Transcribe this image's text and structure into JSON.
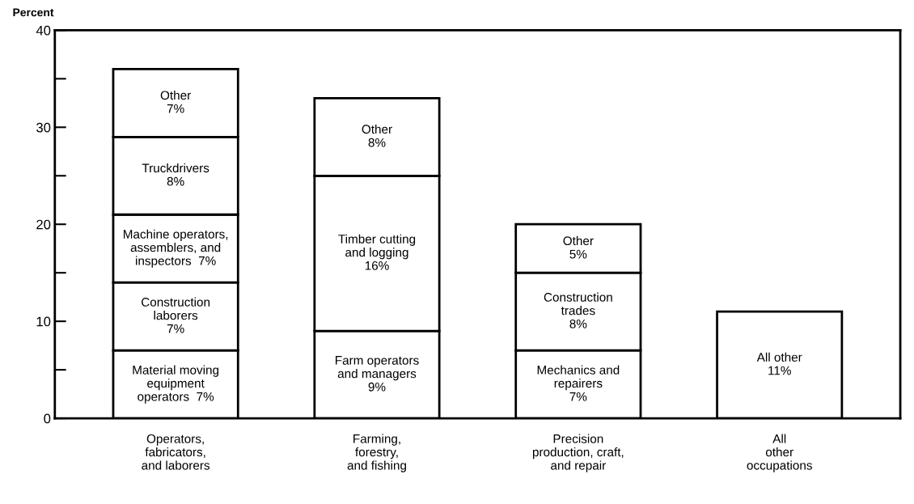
{
  "chart_data": {
    "type": "bar",
    "stacked": true,
    "ylabel": "Percent",
    "categories": [
      "Operators,\nfabricators,\nand laborers",
      "Farming,\nforestry,\nand fishing",
      "Precision\nproduction, craft,\nand repair",
      "All\nother\noccupations"
    ],
    "series": [
      {
        "color": "#ffffff",
        "values": [
          7,
          9,
          7,
          11
        ],
        "value_labels": [
          "Material moving\nequipment\noperators  7%",
          "Farm operators\nand managers\n9%",
          "Mechanics and\nrepairers\n7%",
          "All other\n11%"
        ]
      },
      {
        "color": "#ffffff",
        "values": [
          7,
          16,
          8,
          null
        ],
        "value_labels": [
          "Construction\nlaborers\n7%",
          "Timber cutting\nand logging\n16%",
          "Construction\ntrades\n8%",
          null
        ]
      },
      {
        "color": "#ffffff",
        "values": [
          7,
          8,
          5,
          null
        ],
        "value_labels": [
          "Machine operators,\nassemblers, and\ninspectors  7%",
          "Other\n8%",
          "Other\n5%",
          null
        ]
      },
      {
        "color": "#ffffff",
        "values": [
          8,
          null,
          null,
          null
        ],
        "value_labels": [
          "Truckdrivers\n8%",
          null,
          null,
          null
        ]
      },
      {
        "color": "#ffffff",
        "values": [
          7,
          null,
          null,
          null
        ],
        "value_labels": [
          "Other\n7%",
          null,
          null,
          null
        ]
      }
    ],
    "ylim": [
      0,
      40
    ],
    "yticks": [
      0,
      {
        "value": 5,
        "label": null
      },
      10,
      {
        "value": 15,
        "label": null
      },
      20,
      {
        "value": 25,
        "label": null
      },
      30,
      {
        "value": 35,
        "label": null
      },
      40
    ],
    "grid": false
  }
}
